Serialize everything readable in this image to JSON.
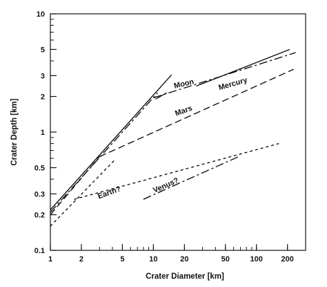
{
  "chart_data": {
    "type": "line",
    "title": "",
    "xlabel": "Crater Diameter [km]",
    "ylabel": "Crater Depth [km]",
    "xscale": "log",
    "yscale": "log",
    "xlim": [
      1,
      300
    ],
    "ylim": [
      0.1,
      10
    ],
    "x_ticks": [
      1,
      2,
      5,
      10,
      20,
      50,
      100,
      200
    ],
    "x_tick_labels": [
      "1",
      "2",
      "5",
      "10",
      "20",
      "50",
      "100",
      "200"
    ],
    "y_ticks": [
      0.1,
      0.2,
      0.3,
      0.5,
      1,
      2,
      3,
      5,
      10
    ],
    "y_tick_labels": [
      "0.1",
      "0.2",
      "0.3",
      "0.5",
      "1",
      "2",
      "3",
      "5",
      "10"
    ],
    "grid": false,
    "legend": "none",
    "line_color": "#111111",
    "series": [
      {
        "name": "Moon",
        "style": "solid",
        "segments": [
          [
            [
              1,
              0.22
            ],
            [
              15,
              3.05
            ]
          ],
          [
            [
              10.5,
              1.9
            ],
            [
              13.5,
              2.15
            ]
          ],
          [
            [
              26,
              2.45
            ],
            [
              210,
              5.0
            ]
          ]
        ]
      },
      {
        "name": "Mercury",
        "style": "dashdot",
        "segments": [
          [
            [
              1,
              0.21
            ],
            [
              11,
              2.15
            ]
          ],
          [
            [
              10,
              1.95
            ],
            [
              240,
              4.7
            ]
          ]
        ]
      },
      {
        "name": "Mars",
        "style": "longdash",
        "segments": [
          [
            [
              1,
              0.2
            ],
            [
              3,
              0.62
            ]
          ],
          [
            [
              3,
              0.62
            ],
            [
              230,
              3.4
            ]
          ]
        ]
      },
      {
        "name": "Earth?",
        "style": "shortdash",
        "segments": [
          [
            [
              1,
              0.16
            ],
            [
              4.2,
              0.58
            ]
          ],
          [
            [
              1.7,
              0.27
            ],
            [
              165,
              0.8
            ]
          ]
        ]
      },
      {
        "name": "Venus?",
        "style": "dashdot",
        "segments": [
          [
            [
              8,
              0.27
            ],
            [
              70,
              0.63
            ]
          ]
        ]
      }
    ],
    "annotations": [
      {
        "text": "Moon",
        "x": 20,
        "y": 2.45,
        "angle": -13
      },
      {
        "text": "Mercury",
        "x": 60,
        "y": 2.45,
        "angle": -16
      },
      {
        "text": "Mars",
        "x": 20,
        "y": 1.45,
        "angle": -20
      },
      {
        "text": "Earth?",
        "x": 3.8,
        "y": 0.295,
        "angle": -20
      },
      {
        "text": "Venus?",
        "x": 13.5,
        "y": 0.34,
        "angle": -24
      }
    ]
  }
}
